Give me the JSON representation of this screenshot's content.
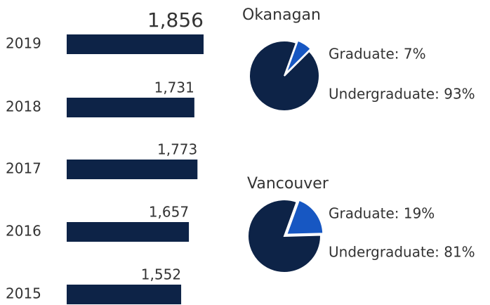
{
  "chart_data": [
    {
      "type": "bar",
      "categories": [
        "2019",
        "2018",
        "2017",
        "2016",
        "2015"
      ],
      "values": [
        1856,
        1731,
        1773,
        1657,
        1552
      ],
      "value_labels": [
        "1,856",
        "1,731",
        "1,773",
        "1,657",
        "1,552"
      ],
      "color": "#0d2347"
    },
    {
      "type": "pie",
      "title": "Okanagan",
      "labels": [
        "Graduate: 7%",
        "Undergraduate: 93%"
      ],
      "values": [
        7,
        93
      ],
      "colors": [
        "#1757c2",
        "#0d2347"
      ]
    },
    {
      "type": "pie",
      "title": "Vancouver",
      "labels": [
        "Graduate: 19%",
        "Undergraduate: 81%"
      ],
      "values": [
        19,
        81
      ],
      "colors": [
        "#1757c2",
        "#0d2347"
      ]
    }
  ]
}
